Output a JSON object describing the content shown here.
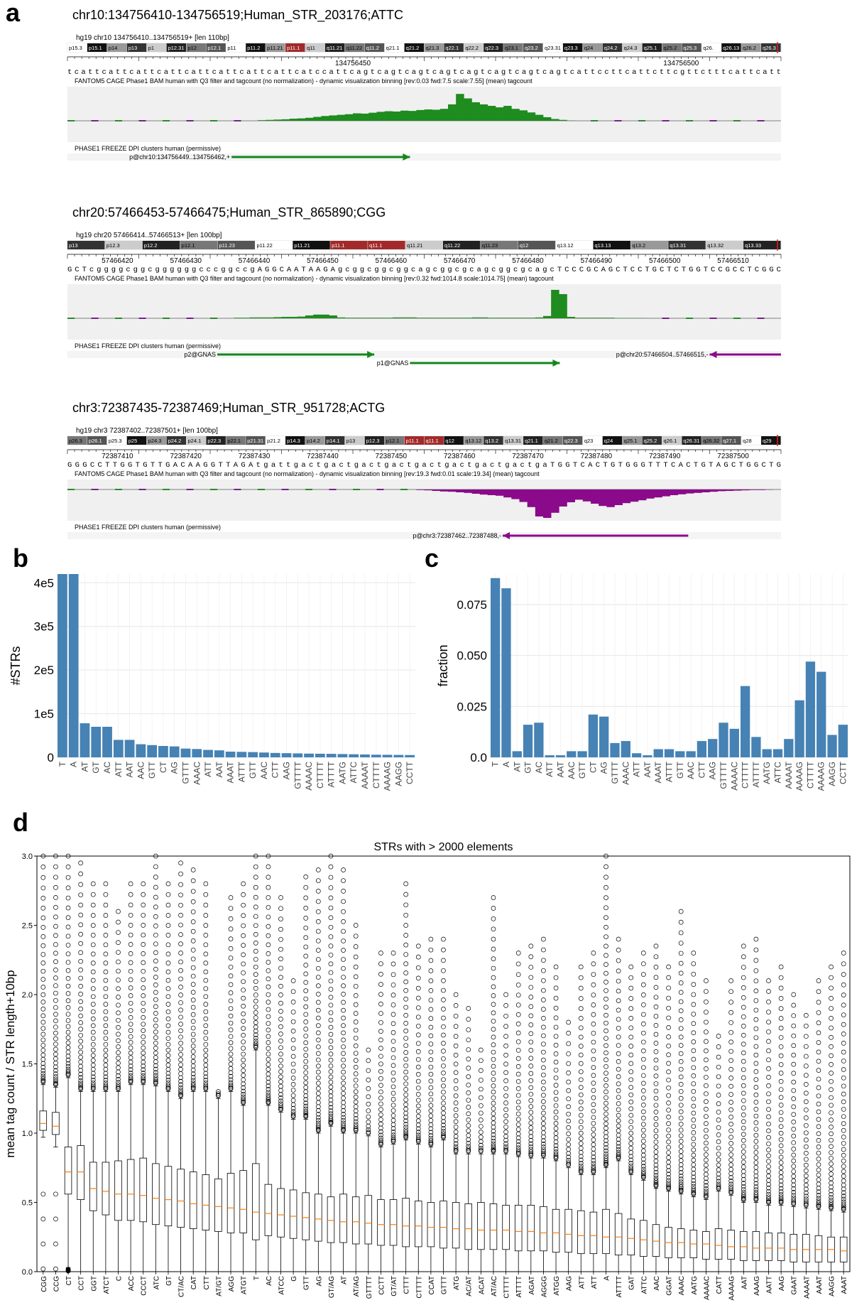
{
  "panels": {
    "a": "a",
    "b": "b",
    "c": "c",
    "d": "d"
  },
  "browser_views": [
    {
      "title": "chr10:134756410-134756519;Human_STR_203176;ATTC",
      "header": "hg19 chr10 134756410..134756519+ [len 110bp]",
      "bands": [
        "p15.3",
        "p15.1",
        "p14",
        "p13",
        "p1",
        "p12.31",
        "p12",
        "p12.1",
        "p11",
        "p11.2",
        "p11.21",
        "p11.1",
        "q11",
        "q11.21",
        "q11.22",
        "q11.2",
        "q21.1",
        "q21.2",
        "q21.3",
        "q22.1",
        "q22.2",
        "q22.3",
        "q23.1",
        "q23.2",
        "q23.31",
        "q23.3",
        "q24",
        "q24.2",
        "q24.3",
        "q25.1",
        "q25.2",
        "q25.3",
        "q26.",
        "q26.13",
        "q26.2",
        "q26.3"
      ],
      "ruler_ticks": [
        "134756450",
        "134756500"
      ],
      "sequence": "tcattcattcattcattcattcattcattcattcatccattcagtcagtcagtcagtcagtcagtcagtcagtcattccttcattcttcgttctttcattcatt",
      "cage_label": "FANTOM5 CAGE Phase1 BAM human with Q3 filter and tagcount (no normalization) - dynamic visualization binning [rev:0.03 fwd:7.5 scale:7.55] (mean) tagcount",
      "dpi_label": "PHASE1 FREEZE DPI clusters human (permissive)",
      "clusters": [
        "p@chr10:134756449..134756462,+"
      ],
      "signal": {
        "strand": "forward",
        "values": [
          0,
          0,
          0,
          0,
          0,
          0,
          0,
          0,
          0,
          0,
          0,
          0,
          0,
          0,
          0,
          0,
          0,
          0,
          0,
          0,
          0,
          0,
          0,
          0,
          0.02,
          0.03,
          0.04,
          0.05,
          0.07,
          0.08,
          0.1,
          0.13,
          0.16,
          0.18,
          0.2,
          0.22,
          0.25,
          0.24,
          0.27,
          0.3,
          0.32,
          0.31,
          0.34,
          0.33,
          0.36,
          0.38,
          0.37,
          0.4,
          0.55,
          0.9,
          0.75,
          0.62,
          0.55,
          0.5,
          0.45,
          0.5,
          0.4,
          0.35,
          0.28,
          0.2,
          0.12,
          0.06,
          0.03,
          0.01,
          0,
          0,
          0,
          0,
          0,
          0,
          0,
          0,
          0,
          0,
          0,
          0,
          0,
          0,
          0,
          0,
          0,
          0,
          0,
          0,
          0,
          0,
          0,
          0,
          0,
          0
        ]
      }
    },
    {
      "title": "chr20:57466453-57466475;Human_STR_865890;CGG",
      "header": "hg19 chr20 57466414..57466513+ [len 100bp]",
      "bands": [
        "p13",
        "p12.3",
        "p12.2",
        "p12.1",
        "p11.23",
        "p11.22",
        "p11.21",
        "p11.1",
        "q11.1",
        "q11.21",
        "q11.22",
        "q11.23",
        "q12",
        "q13.12",
        "q13.13",
        "q13.2",
        "q13.31",
        "q13.32",
        "q13.33"
      ],
      "ruler_ticks": [
        "57466420",
        "57466430",
        "57466440",
        "57466450",
        "57466460",
        "57466470",
        "57466480",
        "57466490",
        "57466500",
        "57466510"
      ],
      "sequence": "GCTcggggcggcggggggcccggccgAGGCAATAAGAgcggcggcggcagcggcgcagcggcgcagcTCCCGCAGCTCCTGCTCTGGTCCGCCTCGGC",
      "cage_label": "FANTOM5 CAGE Phase1 BAM human with Q3 filter and tagcount (no normalization) - dynamic visualization binning [rev:0.32 fwd:1014.8 scale:1014.75] (mean) tagcount",
      "dpi_label": "PHASE1 FREEZE DPI clusters human (permissive)",
      "clusters": [
        "p2@GNAS",
        "p1@GNAS",
        "p@chr20:57466504..57466515,-"
      ],
      "signal": {
        "strand": "forward",
        "values": [
          0,
          0,
          0,
          0,
          0,
          0,
          0,
          0,
          0,
          0,
          0,
          0,
          0,
          0,
          0,
          0,
          0,
          0,
          0,
          0,
          0,
          0.02,
          0.02,
          0.03,
          0.03,
          0.03,
          0.04,
          0.05,
          0.05,
          0.06,
          0.1,
          0.13,
          0.13,
          0.1,
          0.03,
          0.02,
          0.02,
          0.02,
          0.02,
          0.02,
          0.02,
          0.03,
          0.03,
          0.03,
          0.02,
          0.02,
          0.02,
          0.02,
          0.02,
          0.02,
          0.02,
          0.03,
          0.03,
          0.02,
          0.02,
          0.02,
          0.02,
          0.02,
          0.02,
          0.03,
          0.08,
          1.0,
          0.85,
          0.05,
          0.02,
          0.02,
          0.02,
          0.02,
          0.02,
          0.01,
          0.01,
          0.01,
          0.01,
          0,
          0,
          0,
          0,
          0,
          0,
          0,
          0,
          0,
          0,
          0,
          0,
          0,
          0,
          0,
          0,
          0
        ]
      }
    },
    {
      "title": "chr3:72387435-72387469;Human_STR_951728;ACTG",
      "header": "hg19 chr3 72387402..72387501+ [len 100bp]",
      "bands": [
        "p26.3",
        "p26.1",
        "p25.3",
        "p25",
        "p24.3",
        "p24.2",
        "p24.1",
        "p22.3",
        "p22.1",
        "p21.31",
        "p21.2",
        "p14.3",
        "p14.2",
        "p14.1",
        "p13",
        "p12.3",
        "p12.1",
        "p11.1",
        "q11.1",
        "q12",
        "q13.12",
        "q13.2",
        "q13.31",
        "q21.1",
        "q21.2",
        "q22.3",
        "q23",
        "q24",
        "q25.1",
        "q25.2",
        "q26.1",
        "q26.31",
        "q26.32",
        "q27.1",
        "q28",
        "q29"
      ],
      "ruler_ticks": [
        "72387410",
        "72387420",
        "72387430",
        "72387440",
        "72387450",
        "72387460",
        "72387470",
        "72387480",
        "72387490",
        "72387500"
      ],
      "sequence": "GGGCCTTGGTGTTGACAAGGTTAGAtgattgactgactgactgactgactgactgactgactgaTGGTCACTGTGGGTTTCACTGTAGCTGGCTG",
      "cage_label": "FANTOM5 CAGE Phase1 BAM human with Q3 filter and tagcount (no normalization) - dynamic visualization binning [rev:19.3 fwd:0.01 scale:19.34] (mean) tagcount",
      "dpi_label": "PHASE1 FREEZE DPI clusters human (permissive)",
      "clusters": [
        "p@chr3:72387462..72387488,-"
      ],
      "signal": {
        "strand": "reverse",
        "values": [
          0,
          0,
          0,
          0,
          0,
          0,
          0,
          0,
          0,
          0,
          0,
          0,
          0,
          0,
          0,
          0,
          0,
          0,
          0,
          0,
          0,
          0,
          0,
          0,
          0,
          0,
          0,
          0,
          0,
          0,
          0,
          0,
          0,
          0,
          0,
          0,
          0,
          0,
          0,
          0,
          0,
          0,
          0,
          0,
          0.02,
          0.03,
          0.05,
          0.07,
          0.08,
          0.1,
          0.12,
          0.15,
          0.18,
          0.2,
          0.22,
          0.28,
          0.34,
          0.44,
          0.62,
          0.95,
          1.0,
          0.82,
          0.6,
          0.45,
          0.36,
          0.42,
          0.5,
          0.58,
          0.62,
          0.55,
          0.48,
          0.43,
          0.38,
          0.32,
          0.28,
          0.24,
          0.2,
          0.17,
          0.14,
          0.12,
          0.1,
          0.08,
          0.06,
          0.05,
          0.04,
          0.03,
          0.02,
          0.02,
          0.01,
          0
        ]
      }
    }
  ],
  "chart_data": [
    {
      "panel": "b",
      "type": "bar",
      "title": "",
      "xlabel": "",
      "ylabel": "#STRs",
      "ylim": [
        0,
        420000
      ],
      "yticks": [
        0,
        100000,
        200000,
        300000,
        400000
      ],
      "yticklabels": [
        "0",
        "1e5",
        "2e5",
        "3e5",
        "4e5"
      ],
      "grid": true,
      "color": "#4682b4",
      "categories": [
        "T",
        "A",
        "AT",
        "GT",
        "AC",
        "ATT",
        "AAT",
        "AAC",
        "GTT",
        "CT",
        "AG",
        "GTTT",
        "AAAC",
        "ATT",
        "AAT",
        "AAAT",
        "ATTT",
        "GTT",
        "AAC",
        "CTT",
        "AAG",
        "GTTTT",
        "AAAAC",
        "CTTTT",
        "ATTTT",
        "AATG",
        "ATTC",
        "AAAAT",
        "CTTTT",
        "AAAAG",
        "AAGG",
        "CCTT"
      ],
      "values": [
        420000,
        420000,
        78000,
        70000,
        70000,
        40000,
        40000,
        30000,
        28000,
        26000,
        25000,
        20000,
        19000,
        17000,
        16000,
        13000,
        12500,
        12000,
        11000,
        10000,
        9500,
        9000,
        8500,
        8200,
        8000,
        7500,
        7000,
        6500,
        6000,
        5800,
        5500,
        5200
      ]
    },
    {
      "panel": "c",
      "type": "bar",
      "title": "",
      "xlabel": "",
      "ylabel": "fraction",
      "ylim": [
        0,
        0.09
      ],
      "yticks": [
        0.0,
        0.025,
        0.05,
        0.075
      ],
      "yticklabels": [
        "0.0",
        "0.025",
        "0.050",
        "0.075"
      ],
      "grid": true,
      "color": "#4682b4",
      "categories": [
        "T",
        "A",
        "AT",
        "GT",
        "AC",
        "ATT",
        "AAT",
        "AAC",
        "GTT",
        "CT",
        "AG",
        "GTTT",
        "AAAC",
        "ATT",
        "AAT",
        "AAAT",
        "ATTT",
        "GTT",
        "AAC",
        "CTT",
        "AAG",
        "GTTTT",
        "AAAAC",
        "CTTTT",
        "ATTTT",
        "AATG",
        "ATTC",
        "AAAAT",
        "AAAAG",
        "CTTTT",
        "AAAAG",
        "AAGG",
        "CCTT"
      ],
      "values": [
        0.088,
        0.083,
        0.003,
        0.016,
        0.017,
        0.001,
        0.001,
        0.003,
        0.003,
        0.021,
        0.02,
        0.007,
        0.008,
        0.002,
        0.001,
        0.004,
        0.004,
        0.003,
        0.003,
        0.008,
        0.009,
        0.017,
        0.014,
        0.035,
        0.01,
        0.004,
        0.004,
        0.009,
        0.028,
        0.047,
        0.042,
        0.011,
        0.016
      ]
    },
    {
      "panel": "d",
      "type": "box",
      "title": "STRs with > 2000 elements",
      "xlabel": "",
      "ylabel": "mean tag count / STR length+10bp",
      "ylim": [
        0.0,
        3.0
      ],
      "yticks": [
        0.0,
        0.5,
        1.0,
        1.5,
        2.0,
        2.5,
        3.0
      ],
      "yticklabels": [
        "0.0",
        "0.5",
        "1.0",
        "1.5",
        "2.0",
        "2.5",
        "3.0"
      ],
      "grid": false,
      "categories": [
        "CGG",
        "CCG",
        "CT",
        "CCT",
        "GGT",
        "ATCT",
        "C",
        "ACC",
        "CCCT",
        "ATC",
        "GT",
        "CT/AC",
        "CAT",
        "CTT",
        "AT/GT",
        "AGG",
        "ATGT",
        "T",
        "AC",
        "ATCC",
        "G",
        "GTT",
        "AG",
        "GT/AG",
        "AT",
        "AT/AG",
        "GTTTT",
        "CCTT",
        "GT/AT",
        "CTTT",
        "CTTTT",
        "CCAT",
        "GTTT",
        "ATG",
        "AC/AT",
        "ACAT",
        "AT/AC",
        "CTTTT",
        "ATTTT",
        "AGAT",
        "AGGG",
        "ATGG",
        "AAG",
        "ATT",
        "ATT",
        "A",
        "ATTTT",
        "GAT",
        "ATTC",
        "AAC",
        "GGAT",
        "AAAC",
        "AATG",
        "AAAAC",
        "CATT",
        "AAAAG",
        "AAT",
        "AAAG",
        "AATT",
        "AAG",
        "GAAT",
        "AAAAT",
        "AAAT",
        "AAGG",
        "AAAT"
      ],
      "medians": [
        1.07,
        1.05,
        0.72,
        0.72,
        0.6,
        0.58,
        0.56,
        0.56,
        0.55,
        0.53,
        0.52,
        0.51,
        0.49,
        0.48,
        0.47,
        0.46,
        0.45,
        0.43,
        0.42,
        0.41,
        0.4,
        0.39,
        0.38,
        0.37,
        0.36,
        0.36,
        0.35,
        0.34,
        0.34,
        0.33,
        0.33,
        0.32,
        0.32,
        0.31,
        0.31,
        0.3,
        0.3,
        0.3,
        0.29,
        0.29,
        0.28,
        0.28,
        0.27,
        0.26,
        0.26,
        0.25,
        0.25,
        0.24,
        0.23,
        0.22,
        0.21,
        0.21,
        0.2,
        0.2,
        0.19,
        0.18,
        0.18,
        0.17,
        0.17,
        0.17,
        0.16,
        0.16,
        0.16,
        0.16,
        0.15
      ],
      "q1": [
        1.02,
        0.99,
        0.56,
        0.52,
        0.44,
        0.41,
        0.37,
        0.37,
        0.36,
        0.34,
        0.33,
        0.32,
        0.31,
        0.3,
        0.29,
        0.28,
        0.28,
        0.23,
        0.26,
        0.25,
        0.24,
        0.23,
        0.22,
        0.21,
        0.21,
        0.2,
        0.2,
        0.19,
        0.19,
        0.18,
        0.18,
        0.18,
        0.17,
        0.17,
        0.16,
        0.16,
        0.16,
        0.16,
        0.15,
        0.15,
        0.15,
        0.14,
        0.14,
        0.13,
        0.13,
        0.13,
        0.12,
        0.12,
        0.11,
        0.11,
        0.1,
        0.1,
        0.1,
        0.09,
        0.09,
        0.09,
        0.08,
        0.08,
        0.08,
        0.08,
        0.07,
        0.07,
        0.07,
        0.07,
        0.07
      ],
      "q3": [
        1.16,
        1.15,
        0.9,
        0.91,
        0.79,
        0.79,
        0.8,
        0.81,
        0.82,
        0.78,
        0.76,
        0.74,
        0.72,
        0.7,
        0.67,
        0.71,
        0.73,
        0.78,
        0.63,
        0.6,
        0.59,
        0.57,
        0.56,
        0.54,
        0.56,
        0.54,
        0.55,
        0.52,
        0.52,
        0.53,
        0.51,
        0.5,
        0.51,
        0.5,
        0.49,
        0.5,
        0.49,
        0.48,
        0.48,
        0.48,
        0.47,
        0.45,
        0.45,
        0.44,
        0.43,
        0.45,
        0.42,
        0.38,
        0.37,
        0.34,
        0.32,
        0.31,
        0.3,
        0.29,
        0.31,
        0.3,
        0.29,
        0.29,
        0.28,
        0.28,
        0.27,
        0.27,
        0.26,
        0.25,
        0.25
      ],
      "whisker_low": [
        0.97,
        0.9,
        0.03,
        0.0,
        0.0,
        0.0,
        0.0,
        0.0,
        0.0,
        0.0,
        0.0,
        0.0,
        0.0,
        0.0,
        0.0,
        0.0,
        0.0,
        0.0,
        0.0,
        0.0,
        0.0,
        0.0,
        0.0,
        0.0,
        0.0,
        0.0,
        0.0,
        0.0,
        0.0,
        0.0,
        0.0,
        0.0,
        0.0,
        0.0,
        0.0,
        0.0,
        0.0,
        0.0,
        0.0,
        0.0,
        0.0,
        0.0,
        0.0,
        0.0,
        0.0,
        0.0,
        0.0,
        0.0,
        0.0,
        0.0,
        0.0,
        0.0,
        0.0,
        0.0,
        0.0,
        0.0,
        0.0,
        0.0,
        0.0,
        0.0,
        0.0,
        0.0,
        0.0,
        0.0,
        0.0
      ],
      "whisker_high": [
        1.35,
        1.33,
        1.4,
        1.3,
        1.3,
        1.3,
        1.3,
        1.35,
        1.35,
        1.34,
        1.3,
        1.25,
        1.3,
        1.3,
        1.25,
        1.3,
        1.2,
        1.6,
        1.2,
        1.15,
        1.1,
        1.1,
        1.0,
        1.05,
        1.0,
        1.0,
        0.98,
        0.9,
        0.92,
        0.95,
        0.92,
        0.9,
        0.95,
        0.85,
        0.85,
        0.85,
        0.85,
        0.85,
        0.83,
        0.82,
        0.82,
        0.8,
        0.75,
        0.7,
        0.7,
        0.75,
        0.8,
        0.7,
        0.66,
        0.6,
        0.58,
        0.56,
        0.54,
        0.52,
        0.58,
        0.55,
        0.5,
        0.5,
        0.48,
        0.48,
        0.47,
        0.46,
        0.45,
        0.44,
        0.43
      ],
      "outlier_max": [
        3.0,
        3.0,
        3.0,
        2.95,
        2.8,
        2.8,
        2.6,
        2.8,
        2.8,
        3.0,
        2.8,
        2.95,
        2.9,
        2.8,
        1.3,
        2.7,
        2.8,
        3.0,
        3.0,
        2.7,
        2.1,
        2.85,
        2.9,
        3.0,
        2.9,
        2.5,
        1.6,
        2.3,
        2.3,
        2.8,
        2.35,
        2.4,
        2.4,
        2.0,
        1.9,
        1.6,
        2.7,
        2.0,
        2.3,
        2.35,
        2.4,
        2.2,
        1.8,
        2.2,
        2.3,
        3.0,
        2.4,
        2.2,
        2.3,
        2.35,
        2.2,
        2.6,
        2.3,
        2.1,
        1.7,
        2.1,
        2.35,
        2.4,
        2.1,
        2.2,
        2.0,
        1.85,
        2.1,
        2.2,
        2.3
      ]
    }
  ]
}
